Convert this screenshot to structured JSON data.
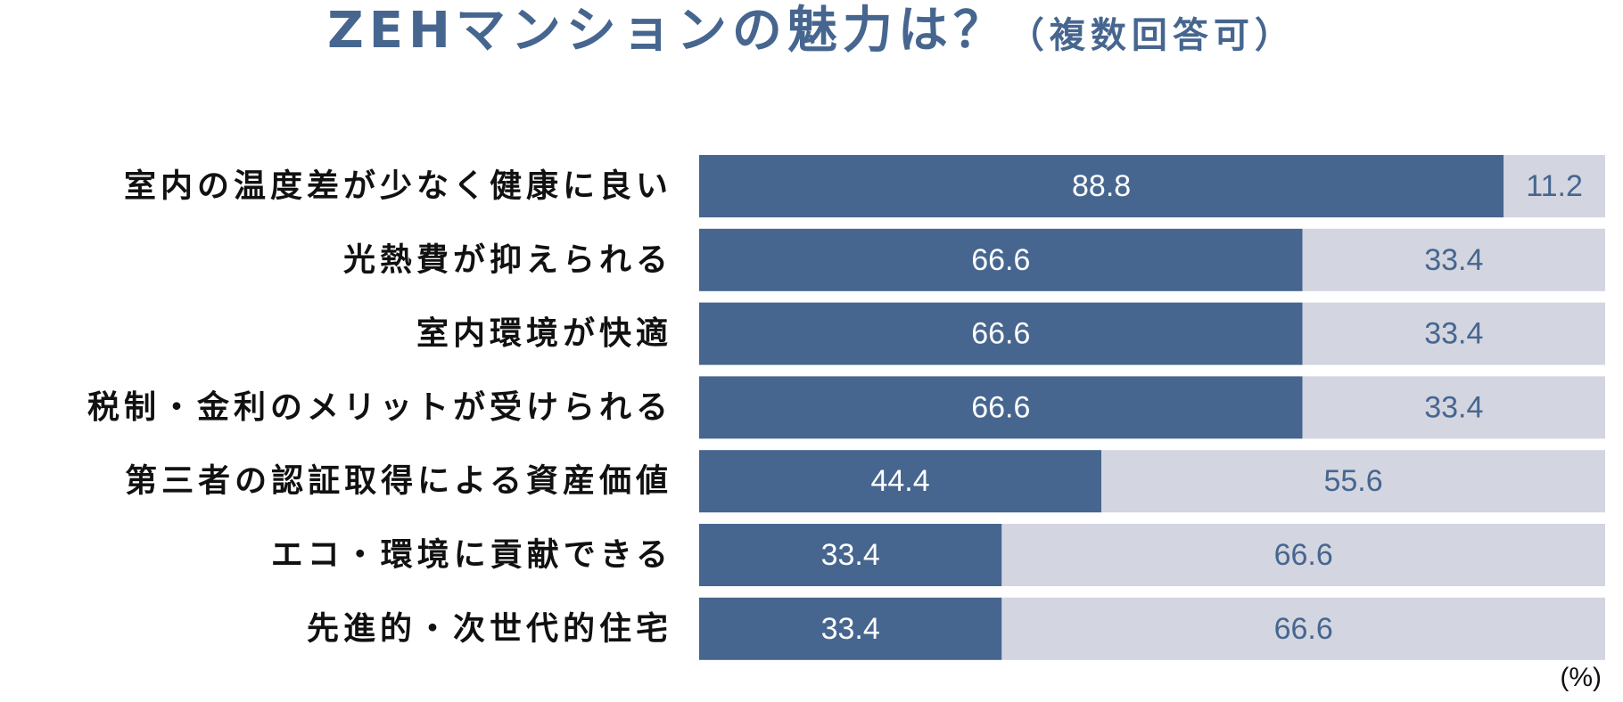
{
  "title": {
    "main": "ZEHマンションの魅力は？",
    "sub": "（複数回答可）"
  },
  "unit_label": "(%)",
  "colors": {
    "primary": "#46668f",
    "remainder": "#d3d5e0",
    "title": "#46668f"
  },
  "chart_data": {
    "type": "bar",
    "orientation": "horizontal",
    "stacked": true,
    "title": "ZEHマンションの魅力は？（複数回答可）",
    "unit": "%",
    "categories": [
      "室内の温度差が少なく健康に良い",
      "光熱費が抑えられる",
      "室内環境が快適",
      "税制・金利のメリットが受けられる",
      "第三者の認証取得による資産価値",
      "エコ・環境に貢献できる",
      "先進的・次世代的住宅"
    ],
    "series": [
      {
        "values": [
          88.8,
          66.6,
          66.6,
          66.6,
          44.4,
          33.4,
          33.4
        ]
      },
      {
        "values": [
          11.2,
          33.4,
          33.4,
          33.4,
          55.6,
          66.6,
          66.6
        ]
      }
    ],
    "xlim": [
      0,
      100
    ],
    "grid": false,
    "legend": "none"
  }
}
